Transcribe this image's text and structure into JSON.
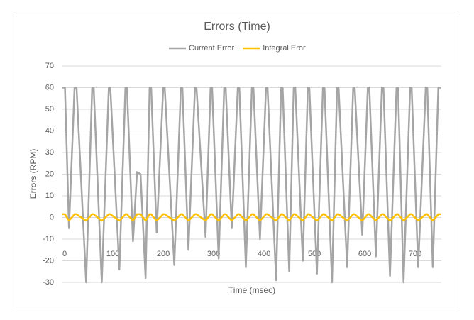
{
  "chart_data": {
    "type": "line",
    "title": "Errors (Time)",
    "x_label": "Time (msec)",
    "y_label": "Errors (RPM)",
    "x": [
      0,
      5,
      13,
      24,
      28,
      47,
      59,
      62,
      78,
      92,
      95,
      113,
      125,
      128,
      140,
      148,
      155,
      165,
      173,
      176,
      187,
      200,
      203,
      222,
      235,
      238,
      250,
      263,
      266,
      284,
      294,
      297,
      310,
      321,
      324,
      336,
      348,
      351,
      364,
      376,
      379,
      392,
      404,
      407,
      424,
      434,
      437,
      450,
      459,
      462,
      477,
      487,
      490,
      505,
      517,
      520,
      535,
      545,
      548,
      565,
      577,
      580,
      595,
      606,
      609,
      622,
      634,
      637,
      650,
      663,
      666,
      677,
      690,
      693,
      706,
      721,
      724,
      735,
      746,
      752
    ],
    "series": [
      {
        "name": "Current Error",
        "color": "#a5a5a5",
        "values": [
          60,
          60,
          -5,
          60,
          60,
          -30,
          60,
          60,
          -30,
          60,
          60,
          -24,
          60,
          60,
          -11,
          21,
          20,
          -28,
          60,
          60,
          -7,
          60,
          60,
          -22,
          60,
          60,
          -15,
          60,
          60,
          -9,
          60,
          60,
          -19,
          60,
          60,
          -5,
          60,
          60,
          -23,
          60,
          60,
          -10,
          60,
          60,
          -29,
          60,
          60,
          -25,
          60,
          60,
          -20,
          60,
          60,
          -26,
          60,
          60,
          -30,
          60,
          60,
          -23,
          60,
          60,
          -8,
          60,
          60,
          -18,
          60,
          60,
          -27,
          60,
          60,
          -30,
          60,
          60,
          -23,
          60,
          60,
          -23,
          60,
          60
        ]
      },
      {
        "name": "Integral Eror",
        "color": "#ffc000",
        "values": [
          1.5,
          1.5,
          -1.5,
          1.5,
          1.5,
          -1.5,
          1.5,
          1.5,
          -1.5,
          1.5,
          1.5,
          -1.5,
          1.5,
          1.5,
          -1.5,
          1.5,
          1.5,
          -1.5,
          1.5,
          1.5,
          -1.5,
          1.5,
          1.5,
          -1.5,
          1.5,
          1.5,
          -1.5,
          1.5,
          1.5,
          -1.5,
          1.5,
          1.5,
          -1.5,
          1.5,
          1.5,
          -1.5,
          1.5,
          1.5,
          -1.5,
          1.5,
          1.5,
          -1.5,
          1.5,
          1.5,
          -1.5,
          1.5,
          1.5,
          -1.5,
          1.5,
          1.5,
          -1.5,
          1.5,
          1.5,
          -1.5,
          1.5,
          1.5,
          -1.5,
          1.5,
          1.5,
          -1.5,
          1.5,
          1.5,
          -1.5,
          1.5,
          1.5,
          -1.5,
          1.5,
          1.5,
          -1.5,
          1.5,
          1.5,
          -1.5,
          1.5,
          1.5,
          -1.5,
          1.5,
          1.5,
          -1.5,
          1.5,
          1.5
        ]
      }
    ],
    "xlim": [
      0,
      752
    ],
    "xticks": [
      0,
      100,
      200,
      300,
      400,
      500,
      600,
      700
    ],
    "ylim": [
      -30,
      70
    ],
    "yticks": [
      -30,
      -20,
      -10,
      0,
      10,
      20,
      30,
      40,
      50,
      60,
      70
    ],
    "grid": true,
    "legend": "top"
  }
}
